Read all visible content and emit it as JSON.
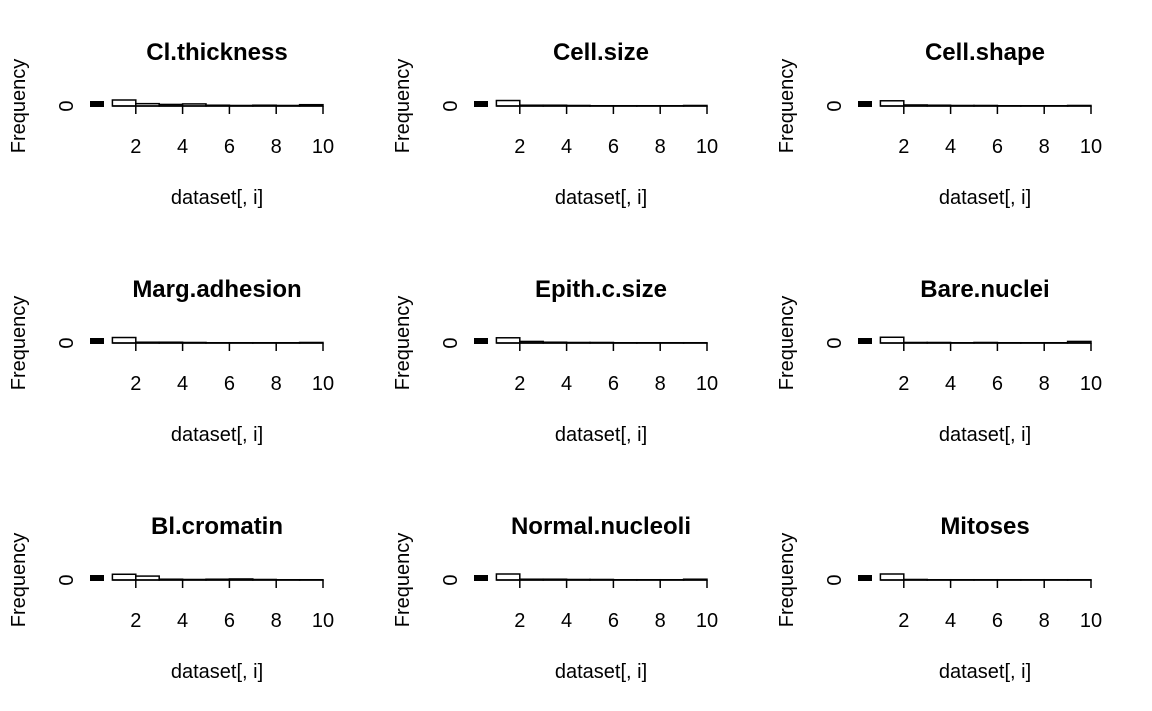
{
  "chart_data": [
    {
      "type": "bar",
      "title": "Cl.thickness",
      "xlabel": "dataset[, i]",
      "ylabel": "Frequency",
      "bins": [
        [
          1,
          2
        ],
        [
          2,
          3
        ],
        [
          3,
          4
        ],
        [
          4,
          5
        ],
        [
          5,
          6
        ],
        [
          6,
          7
        ],
        [
          7,
          8
        ],
        [
          8,
          9
        ],
        [
          9,
          10
        ]
      ],
      "values": [
        2.3,
        0.9,
        0.6,
        0.8,
        0.3,
        0.2,
        0.3,
        0.2,
        0.5
      ],
      "xlim": [
        0,
        10
      ],
      "x_ticks": [
        2,
        4,
        6,
        8,
        10
      ],
      "y_ticks": [
        0
      ],
      "ylim": [
        0,
        2.3
      ]
    },
    {
      "type": "bar",
      "title": "Cell.size",
      "xlabel": "dataset[, i]",
      "ylabel": "Frequency",
      "bins": [
        [
          1,
          2
        ],
        [
          2,
          3
        ],
        [
          3,
          4
        ],
        [
          4,
          5
        ],
        [
          5,
          6
        ],
        [
          6,
          7
        ],
        [
          7,
          8
        ],
        [
          8,
          9
        ],
        [
          9,
          10
        ]
      ],
      "values": [
        2.1,
        0.3,
        0.3,
        0.2,
        0.1,
        0.1,
        0.1,
        0.1,
        0.2
      ],
      "xlim": [
        0,
        10
      ],
      "x_ticks": [
        2,
        4,
        6,
        8,
        10
      ],
      "y_ticks": [
        0
      ],
      "ylim": [
        0,
        2.3
      ]
    },
    {
      "type": "bar",
      "title": "Cell.shape",
      "xlabel": "dataset[, i]",
      "ylabel": "Frequency",
      "bins": [
        [
          1,
          2
        ],
        [
          2,
          3
        ],
        [
          3,
          4
        ],
        [
          4,
          5
        ],
        [
          5,
          6
        ],
        [
          6,
          7
        ],
        [
          7,
          8
        ],
        [
          8,
          9
        ],
        [
          9,
          10
        ]
      ],
      "values": [
        2.0,
        0.4,
        0.3,
        0.2,
        0.2,
        0.1,
        0.1,
        0.1,
        0.2
      ],
      "xlim": [
        0,
        10
      ],
      "x_ticks": [
        2,
        4,
        6,
        8,
        10
      ],
      "y_ticks": [
        0
      ],
      "ylim": [
        0,
        2.3
      ]
    },
    {
      "type": "bar",
      "title": "Marg.adhesion",
      "xlabel": "dataset[, i]",
      "ylabel": "Frequency",
      "bins": [
        [
          1,
          2
        ],
        [
          2,
          3
        ],
        [
          3,
          4
        ],
        [
          4,
          5
        ],
        [
          5,
          6
        ],
        [
          6,
          7
        ],
        [
          7,
          8
        ],
        [
          8,
          9
        ],
        [
          9,
          10
        ]
      ],
      "values": [
        2.1,
        0.3,
        0.3,
        0.2,
        0.1,
        0.1,
        0.1,
        0.1,
        0.2
      ],
      "xlim": [
        0,
        10
      ],
      "x_ticks": [
        2,
        4,
        6,
        8,
        10
      ],
      "y_ticks": [
        0
      ],
      "ylim": [
        0,
        2.3
      ]
    },
    {
      "type": "bar",
      "title": "Epith.c.size",
      "xlabel": "dataset[, i]",
      "ylabel": "Frequency",
      "bins": [
        [
          1,
          2
        ],
        [
          2,
          3
        ],
        [
          3,
          4
        ],
        [
          4,
          5
        ],
        [
          5,
          6
        ],
        [
          6,
          7
        ],
        [
          7,
          8
        ],
        [
          8,
          9
        ],
        [
          9,
          10
        ]
      ],
      "values": [
        2.0,
        0.6,
        0.3,
        0.2,
        0.2,
        0.1,
        0.1,
        0.1,
        0.1
      ],
      "xlim": [
        0,
        10
      ],
      "x_ticks": [
        2,
        4,
        6,
        8,
        10
      ],
      "y_ticks": [
        0
      ],
      "ylim": [
        0,
        2.3
      ]
    },
    {
      "type": "bar",
      "title": "Bare.nuclei",
      "xlabel": "dataset[, i]",
      "ylabel": "Frequency",
      "bins": [
        [
          1,
          2
        ],
        [
          2,
          3
        ],
        [
          3,
          4
        ],
        [
          4,
          5
        ],
        [
          5,
          6
        ],
        [
          6,
          7
        ],
        [
          7,
          8
        ],
        [
          8,
          9
        ],
        [
          9,
          10
        ]
      ],
      "values": [
        2.2,
        0.2,
        0.2,
        0.1,
        0.2,
        0.1,
        0.1,
        0.1,
        0.6
      ],
      "xlim": [
        0,
        10
      ],
      "x_ticks": [
        2,
        4,
        6,
        8,
        10
      ],
      "y_ticks": [
        0
      ],
      "ylim": [
        0,
        2.3
      ]
    },
    {
      "type": "bar",
      "title": "Bl.cromatin",
      "xlabel": "dataset[, i]",
      "ylabel": "Frequency",
      "bins": [
        [
          1,
          2
        ],
        [
          2,
          3
        ],
        [
          3,
          4
        ],
        [
          4,
          5
        ],
        [
          5,
          6
        ],
        [
          6,
          7
        ],
        [
          7,
          8
        ],
        [
          8,
          9
        ],
        [
          9,
          10
        ]
      ],
      "values": [
        2.2,
        1.5,
        0.3,
        0.2,
        0.3,
        0.4,
        0.2,
        0.1,
        0.1
      ],
      "xlim": [
        0,
        10
      ],
      "x_ticks": [
        2,
        4,
        6,
        8,
        10
      ],
      "y_ticks": [
        0
      ],
      "ylim": [
        0,
        2.3
      ]
    },
    {
      "type": "bar",
      "title": "Normal.nucleoli",
      "xlabel": "dataset[, i]",
      "ylabel": "Frequency",
      "bins": [
        [
          1,
          2
        ],
        [
          2,
          3
        ],
        [
          3,
          4
        ],
        [
          4,
          5
        ],
        [
          5,
          6
        ],
        [
          6,
          7
        ],
        [
          7,
          8
        ],
        [
          8,
          9
        ],
        [
          9,
          10
        ]
      ],
      "values": [
        2.3,
        0.3,
        0.3,
        0.2,
        0.2,
        0.1,
        0.1,
        0.1,
        0.3
      ],
      "xlim": [
        0,
        10
      ],
      "x_ticks": [
        2,
        4,
        6,
        8,
        10
      ],
      "y_ticks": [
        0
      ],
      "ylim": [
        0,
        2.3
      ]
    },
    {
      "type": "bar",
      "title": "Mitoses",
      "xlabel": "dataset[, i]",
      "ylabel": "Frequency",
      "bins": [
        [
          1,
          2
        ],
        [
          2,
          3
        ],
        [
          3,
          4
        ],
        [
          4,
          5
        ],
        [
          5,
          6
        ],
        [
          6,
          7
        ],
        [
          7,
          8
        ],
        [
          8,
          9
        ],
        [
          9,
          10
        ]
      ],
      "values": [
        2.3,
        0.2,
        0.1,
        0.1,
        0.1,
        0.1,
        0.1,
        0.1,
        0.1
      ],
      "xlim": [
        0,
        10
      ],
      "x_ticks": [
        2,
        4,
        6,
        8,
        10
      ],
      "y_ticks": [
        0
      ],
      "ylim": [
        0,
        2.3
      ]
    }
  ]
}
